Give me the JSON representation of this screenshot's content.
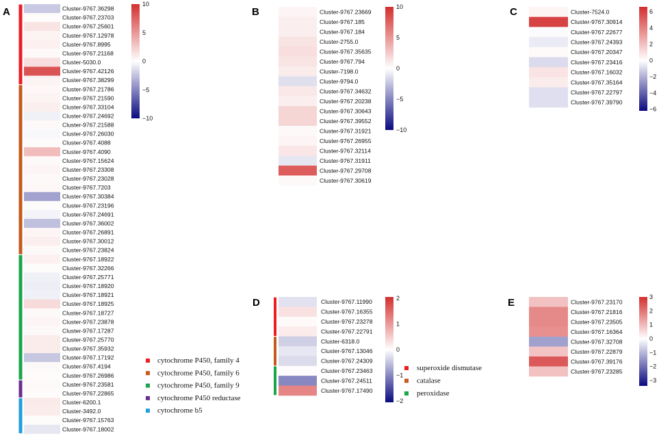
{
  "color_scale": {
    "low": "#0a0a80",
    "mid": "#ffffff",
    "high": "#d32f2f"
  },
  "chart_data": [
    {
      "panel": "A",
      "type": "heatmap",
      "colorbar": {
        "zlim": [
          -10,
          10
        ],
        "ticks": [
          {
            "value": 10,
            "label": "10"
          },
          {
            "value": 5,
            "label": "5"
          },
          {
            "value": 0,
            "label": "0"
          },
          {
            "value": -5,
            "label": "−5"
          },
          {
            "value": -10,
            "label": "−10"
          }
        ]
      },
      "groups": [
        {
          "label": "cytochrome P450, family 4",
          "color": "#ee1c24",
          "count": 9
        },
        {
          "label": "cytochrome P450, family 6",
          "color": "#c45a1c",
          "count": 19
        },
        {
          "label": "cytochrome P450, family 9",
          "color": "#19a64b",
          "count": 14
        },
        {
          "label": "cytochrome P450 reductase",
          "color": "#6b2d90",
          "count": 2
        },
        {
          "label": "cytochrome b5",
          "color": "#1f9fde",
          "count": 4
        }
      ],
      "rows": [
        {
          "label": "Cluster-9767.36298",
          "value": -2.2
        },
        {
          "label": "Cluster-9767.23703",
          "value": 0.2
        },
        {
          "label": "Cluster-9767.25601",
          "value": 1.3
        },
        {
          "label": "Cluster-9767.12978",
          "value": 0.6
        },
        {
          "label": "Cluster-9767.8995",
          "value": 0.7
        },
        {
          "label": "Cluster-9767.21168",
          "value": 0.3
        },
        {
          "label": "Cluster-5030.0",
          "value": 1.6
        },
        {
          "label": "Cluster-9767.42126",
          "value": 8.2
        },
        {
          "label": "Cluster-9767.38299",
          "value": 0.6
        },
        {
          "label": "Cluster-9767.21786",
          "value": 0.4
        },
        {
          "label": "Cluster-9767.21590",
          "value": 0.6
        },
        {
          "label": "Cluster-9767.33104",
          "value": 0.8
        },
        {
          "label": "Cluster-9767.24692",
          "value": -0.6
        },
        {
          "label": "Cluster-9767.21588",
          "value": 0.3
        },
        {
          "label": "Cluster-9767.26030",
          "value": -0.3
        },
        {
          "label": "Cluster-9767.4088",
          "value": 0.2
        },
        {
          "label": "Cluster-9767.4090",
          "value": 3.2
        },
        {
          "label": "Cluster-9767.15624",
          "value": 0.3
        },
        {
          "label": "Cluster-9767.23308",
          "value": 0.5
        },
        {
          "label": "Cluster-9767.23028",
          "value": 0.3
        },
        {
          "label": "Cluster-9767.7203",
          "value": 0.4
        },
        {
          "label": "Cluster-9767.30384",
          "value": -3.8
        },
        {
          "label": "Cluster-9767.23196",
          "value": 0.2
        },
        {
          "label": "Cluster-9767.24691",
          "value": -0.5
        },
        {
          "label": "Cluster-9767.36002",
          "value": -2.6
        },
        {
          "label": "Cluster-9767.26891",
          "value": 0.5
        },
        {
          "label": "Cluster-9767.30012",
          "value": 0.8
        },
        {
          "label": "Cluster-9767.23824",
          "value": 0.3
        },
        {
          "label": "Cluster-9767.18922",
          "value": 0.7
        },
        {
          "label": "Cluster-9767.32266",
          "value": 0.2
        },
        {
          "label": "Cluster-9767.25771",
          "value": -0.6
        },
        {
          "label": "Cluster-9767.18920",
          "value": -0.7
        },
        {
          "label": "Cluster-9767.18921",
          "value": -0.6
        },
        {
          "label": "Cluster-9767.18925",
          "value": 1.8
        },
        {
          "label": "Cluster-9767.18727",
          "value": 0.3
        },
        {
          "label": "Cluster-9767.23878",
          "value": 0.5
        },
        {
          "label": "Cluster-9767.17287",
          "value": 0.3
        },
        {
          "label": "Cluster-9767.25770",
          "value": 0.9
        },
        {
          "label": "Cluster-9767.35932",
          "value": 0.9
        },
        {
          "label": "Cluster-9767.17192",
          "value": -2.3
        },
        {
          "label": "Cluster-9767.4194",
          "value": 0.3
        },
        {
          "label": "Cluster-9767.26986",
          "value": 0.2
        },
        {
          "label": "Cluster-9767.23581",
          "value": 0.3
        },
        {
          "label": "Cluster-9767.22865",
          "value": 0.2
        },
        {
          "label": "Cluster-6200.1",
          "value": 1.0
        },
        {
          "label": "Cluster-3492.0",
          "value": 0.9
        },
        {
          "label": "Cluster-9767.15763",
          "value": 0.2
        },
        {
          "label": "Cluster-9767.18002",
          "value": -1.0
        }
      ]
    },
    {
      "panel": "B",
      "type": "heatmap",
      "colorbar": {
        "zlim": [
          -10,
          10
        ],
        "ticks": [
          {
            "value": 10,
            "label": "10"
          },
          {
            "value": 5,
            "label": "5"
          },
          {
            "value": 0,
            "label": "0"
          },
          {
            "value": -5,
            "label": "−5"
          },
          {
            "value": -10,
            "label": "−10"
          }
        ]
      },
      "rows": [
        {
          "label": "Cluster-9767.23669",
          "value": 0.5
        },
        {
          "label": "Cluster-9767.185",
          "value": 0.8
        },
        {
          "label": "Cluster-9767.184",
          "value": 0.8
        },
        {
          "label": "Cluster-2755.0",
          "value": 1.3
        },
        {
          "label": "Cluster-9767.35635",
          "value": 1.6
        },
        {
          "label": "Cluster-9767.794",
          "value": 1.3
        },
        {
          "label": "Cluster-7198.0",
          "value": 0.9
        },
        {
          "label": "Cluster-9794.0",
          "value": -1.3
        },
        {
          "label": "Cluster-9767.34632",
          "value": 1.1
        },
        {
          "label": "Cluster-9767.20238",
          "value": 0.8
        },
        {
          "label": "Cluster-9767.30643",
          "value": 2.0
        },
        {
          "label": "Cluster-9767.39552",
          "value": 2.0
        },
        {
          "label": "Cluster-9767.31921",
          "value": 0.3
        },
        {
          "label": "Cluster-9767.26955",
          "value": 0.5
        },
        {
          "label": "Cluster-9767.32114",
          "value": 1.2
        },
        {
          "label": "Cluster-9767.31911",
          "value": -1.0
        },
        {
          "label": "Cluster-9767.29708",
          "value": 7.8
        },
        {
          "label": "Cluster-9767.30619",
          "value": 0.3
        }
      ]
    },
    {
      "panel": "C",
      "type": "heatmap",
      "colorbar": {
        "zlim": [
          -6.2,
          6.6
        ],
        "ticks": [
          {
            "value": 6,
            "label": "6"
          },
          {
            "value": 4,
            "label": "4"
          },
          {
            "value": 2,
            "label": "2"
          },
          {
            "value": 0,
            "label": "0"
          },
          {
            "value": -2,
            "label": "−2"
          },
          {
            "value": -4,
            "label": "−4"
          },
          {
            "value": -6,
            "label": "−6"
          }
        ]
      },
      "rows": [
        {
          "label": "Cluster-7524.0",
          "value": 0.35
        },
        {
          "label": "Cluster-9767.30914",
          "value": 6.0
        },
        {
          "label": "Cluster-9767.22677",
          "value": -0.1
        },
        {
          "label": "Cluster-9767.24393",
          "value": -0.5
        },
        {
          "label": "Cluster-9767.20347",
          "value": 0.15
        },
        {
          "label": "Cluster-9767.23416",
          "value": -0.9
        },
        {
          "label": "Cluster-9767.16032",
          "value": 0.9
        },
        {
          "label": "Cluster-9767.35164",
          "value": 0.6
        },
        {
          "label": "Cluster-9767.22797",
          "value": -0.8
        },
        {
          "label": "Cluster-9767.39790",
          "value": -0.8
        }
      ]
    },
    {
      "panel": "D",
      "type": "heatmap",
      "colorbar": {
        "zlim": [
          -2.05,
          2.05
        ],
        "ticks": [
          {
            "value": 2,
            "label": "2"
          },
          {
            "value": 1,
            "label": "1"
          },
          {
            "value": 0,
            "label": "0"
          },
          {
            "value": -1,
            "label": "−1"
          },
          {
            "value": -2,
            "label": "−2"
          }
        ]
      },
      "groups": [
        {
          "label": "superoxide dismutase",
          "color": "#ee1c24",
          "count": 4
        },
        {
          "label": "catalase",
          "color": "#c45a1c",
          "count": 3
        },
        {
          "label": "peroxidase",
          "color": "#19a64b",
          "count": 3
        }
      ],
      "rows": [
        {
          "label": "Cluster-9767.11990",
          "value": -0.25
        },
        {
          "label": "Cluster-9767.16355",
          "value": 0.3
        },
        {
          "label": "Cluster-9767.23278",
          "value": 0.05
        },
        {
          "label": "Cluster-9767.22791",
          "value": 0.2
        },
        {
          "label": "Cluster-6318.0",
          "value": -0.4
        },
        {
          "label": "Cluster-9767.13046",
          "value": -0.2
        },
        {
          "label": "Cluster-9767.24309",
          "value": -0.3
        },
        {
          "label": "Cluster-9767.23463",
          "value": 0.03
        },
        {
          "label": "Cluster-9767.24511",
          "value": -1.0
        },
        {
          "label": "Cluster-9767.17490",
          "value": 1.2
        }
      ]
    },
    {
      "panel": "E",
      "type": "heatmap",
      "colorbar": {
        "zlim": [
          -3.4,
          3.0
        ],
        "ticks": [
          {
            "value": 3,
            "label": "3"
          },
          {
            "value": 2,
            "label": "2"
          },
          {
            "value": 1,
            "label": "1"
          },
          {
            "value": 0,
            "label": "0"
          },
          {
            "value": -1,
            "label": "−1"
          },
          {
            "value": -2,
            "label": "−2"
          },
          {
            "value": -3,
            "label": "−3"
          }
        ]
      },
      "rows": [
        {
          "label": "Cluster-9767.23170",
          "value": 0.9
        },
        {
          "label": "Cluster-9767.21816",
          "value": 1.7
        },
        {
          "label": "Cluster-9767.23505",
          "value": 1.7
        },
        {
          "label": "Cluster-9767.16364",
          "value": 1.6
        },
        {
          "label": "Cluster-9767.32708",
          "value": -1.3
        },
        {
          "label": "Cluster-9767.22879",
          "value": 0.85
        },
        {
          "label": "Cluster-9767.39176",
          "value": 2.4
        },
        {
          "label": "Cluster-9767.23285",
          "value": 0.9
        }
      ]
    }
  ]
}
